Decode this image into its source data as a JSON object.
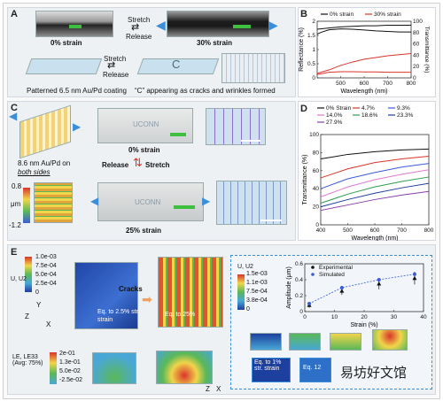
{
  "panel_labels": {
    "a": "A",
    "b": "B",
    "c": "C",
    "d": "D",
    "e": "E"
  },
  "panelA": {
    "strain0": "0% strain",
    "strain30": "30% strain",
    "stretch": "Stretch",
    "release": "Release",
    "caption_left": "Patterned 6.5 nm Au/Pd coating",
    "caption_right": "“C” appearing as cracks and wrinkles formed",
    "logo_letter": "C"
  },
  "panelC": {
    "coating": "8.6 nm Au/Pd on",
    "both_sides": "both sides",
    "strain0": "0% strain",
    "strain25": "25% strain",
    "release": "Release",
    "stretch": "Stretch",
    "cbar_max": "0.8",
    "cbar_unit": "μm",
    "cbar_min": "-1.2",
    "logo_text": "UCONN"
  },
  "panelE": {
    "legend1_title": "U, U2",
    "legend1_ticks": [
      "1.0e-03",
      "7.5e-04",
      "5.0e-04",
      "2.5e-04",
      "0"
    ],
    "legend2_title": "U, U2",
    "legend2_ticks": [
      "1.5e-03",
      "1.1e-03",
      "7.5e-04",
      "3.8e-04",
      "0"
    ],
    "legend3_title": "LE, LE33 (Avg: 75%)",
    "legend3_ticks": [
      "2e-01",
      "1.3e-01",
      "5.0e-02",
      "-2.5e-02"
    ],
    "cracks": "Cracks",
    "eq25": "Eq. to 2.5% str. strain",
    "eq25b": "Eq. to 25%",
    "eq1": "Eq. to 1% str. strain",
    "eq12": "Eq. 12",
    "axis_x": "X",
    "axis_y": "Y",
    "axis_z": "Z",
    "watermark": "易坊好文馆"
  },
  "chart_data": [
    {
      "type": "line",
      "title": "",
      "xlabel": "Wavelength (nm)",
      "ylabel": "Reflectance (%)",
      "ylabel2": "Transmittance (%)",
      "xlim": [
        400,
        800
      ],
      "ylim": [
        0,
        2.0
      ],
      "ylim2": [
        0,
        100
      ],
      "xticks": [
        500,
        600,
        700,
        800
      ],
      "yticks": [
        0,
        0.5,
        1.0,
        1.5,
        2.0
      ],
      "yticks2": [
        0,
        20,
        40,
        60,
        80,
        100
      ],
      "legend_position": "top",
      "series": [
        {
          "name": "0% strain",
          "color": "#111111",
          "axis": "left",
          "x": [
            400,
            420,
            450,
            500,
            550,
            600,
            650,
            700,
            750,
            800
          ],
          "y": [
            1.55,
            1.62,
            1.7,
            1.73,
            1.72,
            1.69,
            1.66,
            1.64,
            1.62,
            1.62
          ]
        },
        {
          "name": "30% strain",
          "color": "#d9342b",
          "axis": "left",
          "x": [
            400,
            420,
            450,
            500,
            550,
            600,
            650,
            700,
            750,
            800
          ],
          "y": [
            0.12,
            0.15,
            0.2,
            0.22,
            0.22,
            0.21,
            0.21,
            0.2,
            0.2,
            0.2
          ]
        },
        {
          "name": "0% strain",
          "color": "#111111",
          "axis": "right",
          "x": [
            400,
            450,
            500,
            550,
            600,
            650,
            700,
            750,
            800
          ],
          "y": [
            86,
            88,
            90,
            91,
            92,
            92,
            93,
            93,
            93
          ]
        },
        {
          "name": "30% strain",
          "color": "#d9342b",
          "axis": "right",
          "x": [
            400,
            450,
            500,
            550,
            600,
            650,
            700,
            750,
            800
          ],
          "y": [
            8,
            14,
            22,
            28,
            33,
            36,
            39,
            41,
            43
          ]
        }
      ]
    },
    {
      "type": "line",
      "title": "",
      "xlabel": "Wavelength (nm)",
      "ylabel": "Transmittance (%)",
      "xlim": [
        400,
        800
      ],
      "ylim": [
        0,
        100
      ],
      "xticks": [
        400,
        500,
        600,
        700,
        800
      ],
      "yticks": [
        0,
        20,
        40,
        60,
        80,
        100
      ],
      "legend_position": "top",
      "series": [
        {
          "name": "0% Strain",
          "color": "#111111",
          "x": [
            400,
            500,
            600,
            700,
            800
          ],
          "y": [
            73,
            78,
            81,
            83,
            84
          ]
        },
        {
          "name": "4.7%",
          "color": "#d9342b",
          "x": [
            400,
            500,
            600,
            700,
            800
          ],
          "y": [
            52,
            62,
            69,
            73,
            76
          ]
        },
        {
          "name": "9.3%",
          "color": "#3b5bd9",
          "x": [
            400,
            500,
            600,
            700,
            800
          ],
          "y": [
            40,
            51,
            58,
            64,
            68
          ]
        },
        {
          "name": "14.0%",
          "color": "#e07ad0",
          "x": [
            400,
            500,
            600,
            700,
            800
          ],
          "y": [
            31,
            42,
            50,
            56,
            61
          ]
        },
        {
          "name": "18.6%",
          "color": "#2e9e4a",
          "x": [
            400,
            500,
            600,
            700,
            800
          ],
          "y": [
            24,
            34,
            42,
            48,
            53
          ]
        },
        {
          "name": "23.3%",
          "color": "#1d3f9e",
          "x": [
            400,
            500,
            600,
            700,
            800
          ],
          "y": [
            20,
            28,
            35,
            41,
            46
          ]
        },
        {
          "name": "27.9%",
          "color": "#8a3fa6",
          "x": [
            400,
            500,
            600,
            700,
            800
          ],
          "y": [
            16,
            22,
            28,
            33,
            37
          ]
        }
      ]
    },
    {
      "type": "scatter",
      "title": "",
      "xlabel": "Strain (%)",
      "ylabel": "Amplitude (μm)",
      "xlim": [
        0,
        40
      ],
      "ylim": [
        0,
        0.6
      ],
      "xticks": [
        0,
        10,
        20,
        30,
        40
      ],
      "yticks": [
        0,
        0.2,
        0.4,
        0.6
      ],
      "legend_position": "top-left",
      "series": [
        {
          "name": "Experimental",
          "color": "#111111",
          "marker": "triangle",
          "x": [
            1.5,
            12.5,
            25,
            37
          ],
          "y": [
            0.08,
            0.26,
            0.35,
            0.42
          ],
          "err": [
            0.03,
            0.05,
            0.07,
            0.08
          ]
        },
        {
          "name": "Simulated",
          "color": "#3b5bd9",
          "marker": "circle",
          "x": [
            1.5,
            12.5,
            25,
            37
          ],
          "y": [
            0.1,
            0.3,
            0.4,
            0.47
          ]
        }
      ]
    }
  ]
}
